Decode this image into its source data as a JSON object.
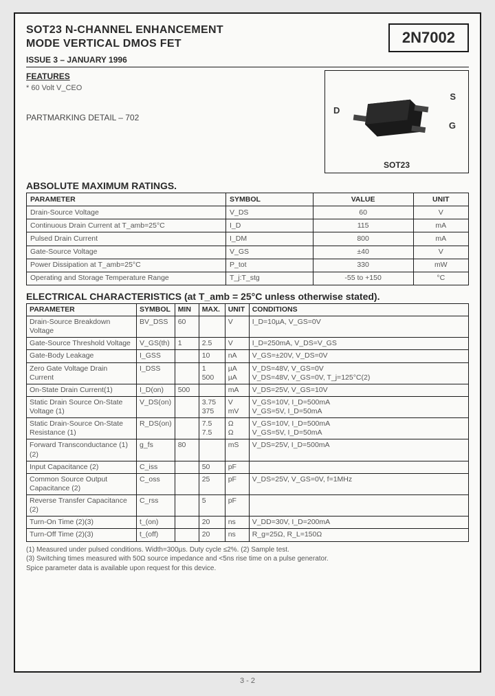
{
  "header": {
    "title_line1": "SOT23 N-CHANNEL ENHANCEMENT",
    "title_line2": "MODE VERTICAL DMOS FET",
    "part_number": "2N7002",
    "issue": "ISSUE 3 – JANUARY 1996"
  },
  "features": {
    "heading": "FEATURES",
    "item1": "*   60 Volt V_CEO"
  },
  "partmarking": "PARTMARKING DETAIL – 702",
  "package": {
    "name": "SOT23",
    "pins": {
      "d": "D",
      "s": "S",
      "g": "G"
    },
    "body_fill": "#1a1a1a"
  },
  "amr": {
    "heading": "ABSOLUTE MAXIMUM RATINGS.",
    "columns": [
      "PARAMETER",
      "SYMBOL",
      "VALUE",
      "UNIT"
    ],
    "rows": [
      [
        "Drain-Source Voltage",
        "V_DS",
        "60",
        "V"
      ],
      [
        "Continuous Drain Current at T_amb=25°C",
        "I_D",
        "115",
        "mA"
      ],
      [
        "Pulsed Drain Current",
        "I_DM",
        "800",
        "mA"
      ],
      [
        "Gate-Source Voltage",
        "V_GS",
        "±40",
        "V"
      ],
      [
        "Power Dissipation at T_amb=25°C",
        "P_tot",
        "330",
        "mW"
      ],
      [
        "Operating and Storage Temperature Range",
        "T_j:T_stg",
        "-55 to +150",
        "°C"
      ]
    ]
  },
  "ec": {
    "heading": "ELECTRICAL CHARACTERISTICS (at T_amb = 25°C unless otherwise stated).",
    "columns": [
      "PARAMETER",
      "SYMBOL",
      "MIN",
      "MAX.",
      "UNIT",
      "CONDITIONS"
    ],
    "rows": [
      [
        "Drain-Source Breakdown Voltage",
        "BV_DSS",
        "60",
        "",
        "V",
        "I_D=10µA, V_GS=0V"
      ],
      [
        "Gate-Source Threshold Voltage",
        "V_GS(th)",
        "1",
        "2.5",
        "V",
        "I_D=250mA, V_DS=V_GS"
      ],
      [
        "Gate-Body Leakage",
        "I_GSS",
        "",
        "10",
        "nA",
        "V_GS=±20V, V_DS=0V"
      ],
      [
        "Zero Gate Voltage Drain Current",
        "I_DSS",
        "",
        "1\n500",
        "µA\nµA",
        "V_DS=48V, V_GS=0V\nV_DS=48V, V_GS=0V, T_j=125°C(2)"
      ],
      [
        "On-State Drain Current(1)",
        "I_D(on)",
        "500",
        "",
        "mA",
        "V_DS=25V, V_GS=10V"
      ],
      [
        "Static Drain Source On-State Voltage (1)",
        "V_DS(on)",
        "",
        "3.75\n375",
        "V\nmV",
        "V_GS=10V, I_D=500mA\nV_GS=5V, I_D=50mA"
      ],
      [
        "Static Drain-Source On-State Resistance (1)",
        "R_DS(on)",
        "",
        "7.5\n7.5",
        "Ω\nΩ",
        "V_GS=10V, I_D=500mA\nV_GS=5V, I_D=50mA"
      ],
      [
        "Forward Transconductance (1)(2)",
        "g_fs",
        "80",
        "",
        "mS",
        "V_DS=25V, I_D=500mA"
      ],
      [
        "Input Capacitance (2)",
        "C_iss",
        "",
        "50",
        "pF",
        ""
      ],
      [
        "Common Source Output Capacitance (2)",
        "C_oss",
        "",
        "25",
        "pF",
        "V_DS=25V, V_GS=0V, f=1MHz"
      ],
      [
        "Reverse Transfer Capacitance (2)",
        "C_rss",
        "",
        "5",
        "pF",
        ""
      ],
      [
        "Turn-On Time (2)(3)",
        "t_(on)",
        "",
        "20",
        "ns",
        "V_DD=30V, I_D=200mA"
      ],
      [
        "Turn-Off Time (2)(3)",
        "t_(off)",
        "",
        "20",
        "ns",
        "R_g=25Ω, R_L=150Ω"
      ]
    ]
  },
  "notes": {
    "n1": "(1) Measured under pulsed conditions. Width=300µs. Duty cycle ≤2%. (2) Sample test.",
    "n2": "(3) Switching times measured with 50Ω source impedance and <5ns rise time on a pulse generator.",
    "n3": "Spice parameter data is available upon request for this device."
  },
  "page_number": "3 - 2"
}
